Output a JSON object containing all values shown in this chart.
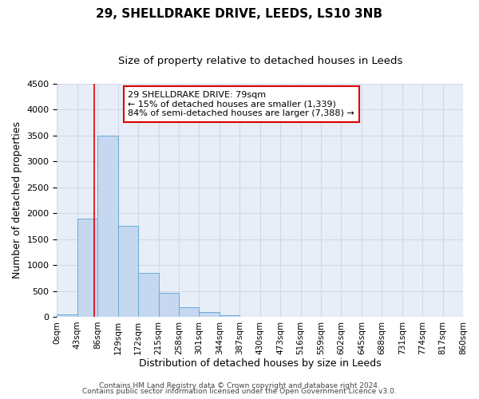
{
  "title": "29, SHELLDRAKE DRIVE, LEEDS, LS10 3NB",
  "subtitle": "Size of property relative to detached houses in Leeds",
  "xlabel": "Distribution of detached houses by size in Leeds",
  "ylabel": "Number of detached properties",
  "bar_values": [
    50,
    1900,
    3500,
    1760,
    850,
    460,
    185,
    90,
    35,
    5,
    5,
    0,
    0,
    0,
    0,
    0,
    0,
    0,
    0
  ],
  "bin_edges": [
    0,
    43,
    86,
    129,
    172,
    215,
    258,
    301,
    344,
    387,
    430,
    473,
    516,
    559,
    602,
    645,
    688,
    731,
    774,
    817,
    860
  ],
  "tick_labels": [
    "0sqm",
    "43sqm",
    "86sqm",
    "129sqm",
    "172sqm",
    "215sqm",
    "258sqm",
    "301sqm",
    "344sqm",
    "387sqm",
    "430sqm",
    "473sqm",
    "516sqm",
    "559sqm",
    "602sqm",
    "645sqm",
    "688sqm",
    "731sqm",
    "774sqm",
    "817sqm",
    "860sqm"
  ],
  "bar_color": "#c5d8f0",
  "bar_edgecolor": "#6aaad4",
  "vline_x": 79,
  "vline_color": "#dd0000",
  "ylim": [
    0,
    4500
  ],
  "yticks": [
    0,
    500,
    1000,
    1500,
    2000,
    2500,
    3000,
    3500,
    4000,
    4500
  ],
  "annotation_line1": "29 SHELLDRAKE DRIVE: 79sqm",
  "annotation_line2": "← 15% of detached houses are smaller (1,339)",
  "annotation_line3": "84% of semi-detached houses are larger (7,388) →",
  "annotation_box_edgecolor": "#dd0000",
  "annotation_box_facecolor": "#ffffff",
  "footer_line1": "Contains HM Land Registry data © Crown copyright and database right 2024.",
  "footer_line2": "Contains public sector information licensed under the Open Government Licence v3.0.",
  "plot_bg_color": "#e8eef8",
  "fig_bg_color": "#ffffff",
  "grid_color": "#d0d8e8",
  "title_fontsize": 11,
  "subtitle_fontsize": 9.5,
  "axis_label_fontsize": 9,
  "tick_fontsize": 7.5,
  "annotation_fontsize": 8,
  "footer_fontsize": 6.5
}
